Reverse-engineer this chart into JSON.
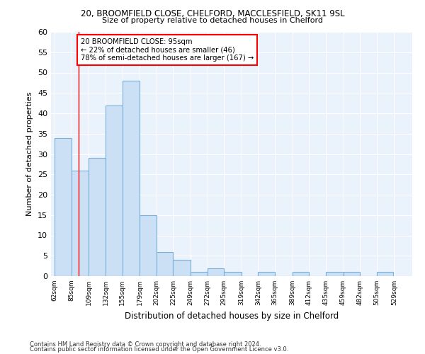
{
  "title": "20, BROOMFIELD CLOSE, CHELFORD, MACCLESFIELD, SK11 9SL",
  "subtitle": "Size of property relative to detached houses in Chelford",
  "xlabel": "Distribution of detached houses by size in Chelford",
  "ylabel": "Number of detached properties",
  "bar_color": "#cce0f5",
  "bar_edge_color": "#7ab0d8",
  "bins_left": [
    62,
    85,
    109,
    132,
    155,
    179,
    202,
    225,
    249,
    272,
    295,
    319,
    342,
    365,
    389,
    412,
    435,
    459,
    482,
    505
  ],
  "values": [
    34,
    26,
    29,
    42,
    48,
    15,
    6,
    4,
    1,
    2,
    1,
    0,
    1,
    0,
    1,
    0,
    1,
    1,
    0,
    1
  ],
  "tick_labels": [
    "62sqm",
    "85sqm",
    "109sqm",
    "132sqm",
    "155sqm",
    "179sqm",
    "202sqm",
    "225sqm",
    "249sqm",
    "272sqm",
    "295sqm",
    "319sqm",
    "342sqm",
    "365sqm",
    "389sqm",
    "412sqm",
    "435sqm",
    "459sqm",
    "482sqm",
    "505sqm",
    "529sqm"
  ],
  "ylim": [
    0,
    60
  ],
  "yticks": [
    0,
    5,
    10,
    15,
    20,
    25,
    30,
    35,
    40,
    45,
    50,
    55,
    60
  ],
  "red_line_x": 95,
  "annotation_text": "20 BROOMFIELD CLOSE: 95sqm\n← 22% of detached houses are smaller (46)\n78% of semi-detached houses are larger (167) →",
  "annotation_box_color": "white",
  "annotation_box_edge": "red",
  "background_color": "#eaf2fb",
  "grid_color": "white",
  "footer_line1": "Contains HM Land Registry data © Crown copyright and database right 2024.",
  "footer_line2": "Contains public sector information licensed under the Open Government Licence v3.0."
}
